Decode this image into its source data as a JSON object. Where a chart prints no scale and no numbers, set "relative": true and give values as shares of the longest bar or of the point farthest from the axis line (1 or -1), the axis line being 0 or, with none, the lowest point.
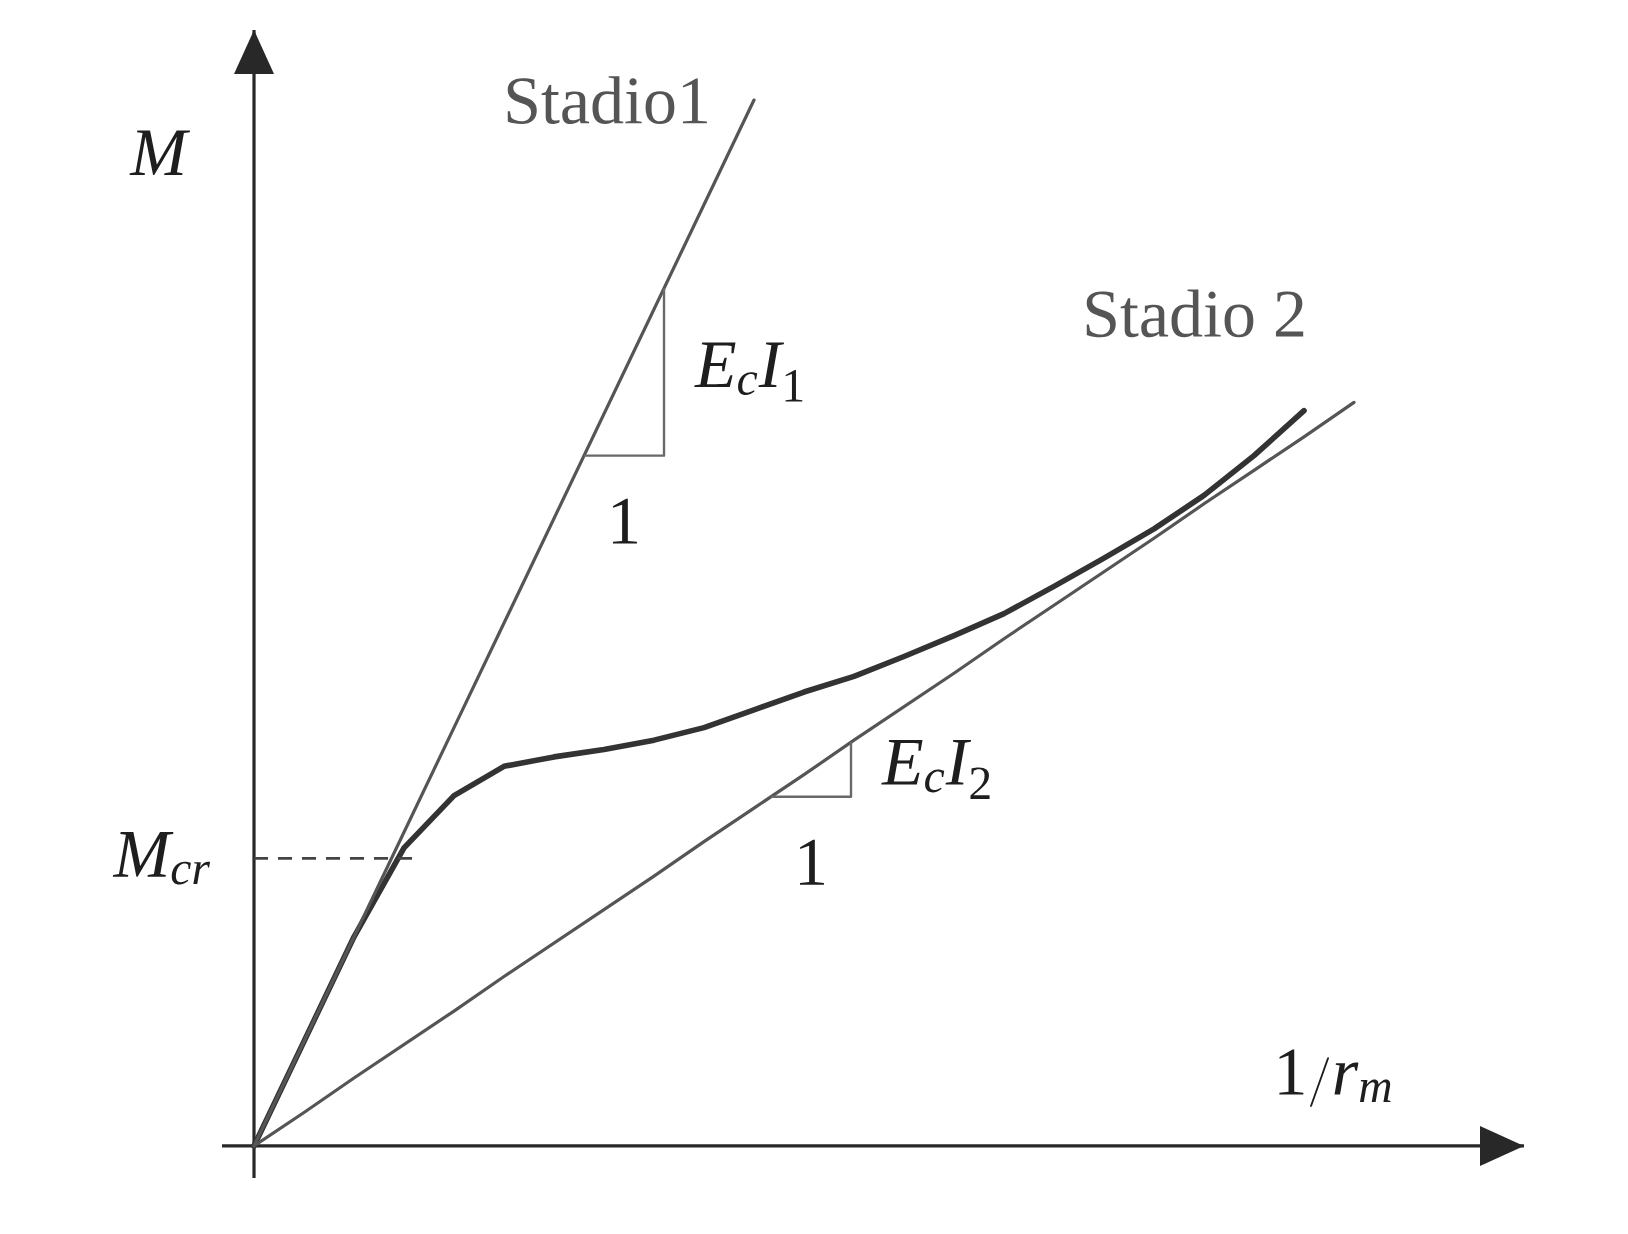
{
  "chart_data": {
    "type": "line",
    "relative": true,
    "xlabel": "1/r_m",
    "ylabel": "M",
    "categories": [
      null,
      null,
      null,
      null,
      null,
      null,
      null,
      null,
      null,
      null,
      null,
      null,
      null,
      null,
      null,
      null,
      null,
      null,
      null,
      null,
      null,
      null,
      null
    ],
    "series": [
      {
        "name": "Stadio1",
        "color": "#555555",
        "values": [
          0,
          0.1,
          0.2,
          0.3,
          0.4,
          0.5,
          0.6,
          0.7,
          0.8,
          0.9,
          1,
          null,
          null,
          null,
          null,
          null,
          null,
          null,
          null,
          null,
          null,
          null,
          null
        ]
      },
      {
        "name": "Stadio 2",
        "color": "#555555",
        "values": [
          0,
          0.032,
          0.065,
          0.097,
          0.129,
          0.162,
          0.194,
          0.226,
          0.258,
          0.291,
          0.323,
          0.355,
          0.388,
          0.42,
          0.452,
          0.485,
          0.517,
          0.549,
          0.581,
          0.614,
          0.646,
          0.678,
          0.711
        ]
      },
      {
        "color": "#333333",
        "values": [
          0,
          0.1,
          0.2,
          0.285,
          0.335,
          0.363,
          0.372,
          0.379,
          0.388,
          0.4,
          0.417,
          0.434,
          0.449,
          0.468,
          0.488,
          0.509,
          0.535,
          0.562,
          0.59,
          0.622,
          0.66,
          0.703,
          null
        ]
      }
    ],
    "ref_lines": [
      {
        "axis": "y",
        "value": 0.275,
        "label": "M_{cr}",
        "line_style": "dashed"
      }
    ],
    "annotations": [
      "E_cI_1",
      "1",
      "E_cI_2",
      "1"
    ]
  }
}
